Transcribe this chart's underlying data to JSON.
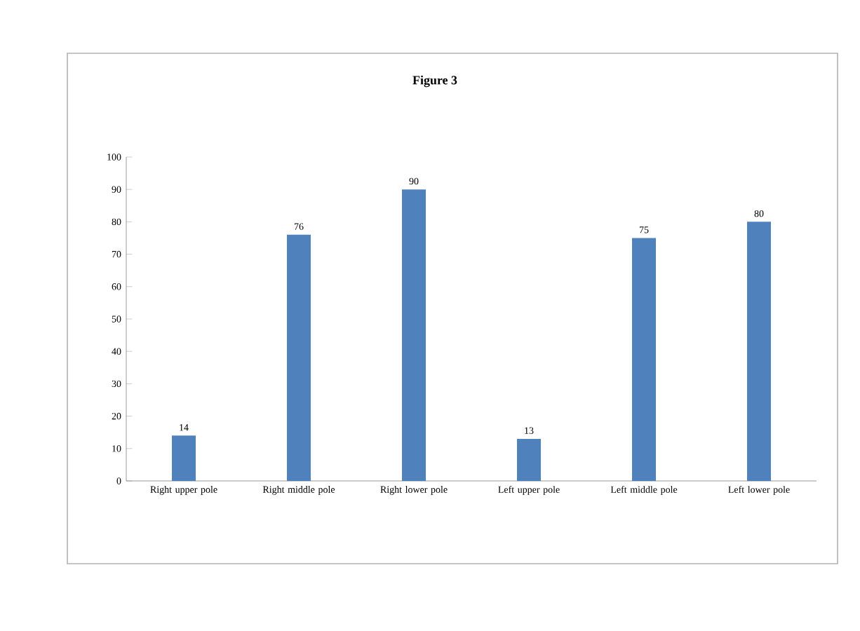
{
  "chart_data": {
    "type": "bar",
    "title": "Figure 3",
    "categories": [
      "Right upper pole",
      "Right middle pole",
      "Right lower pole",
      "Left upper pole",
      "Left middle pole",
      "Left lower pole"
    ],
    "values": [
      14,
      76,
      90,
      13,
      75,
      80
    ],
    "color": "#4f81bd",
    "ylim": [
      0,
      100
    ],
    "yticks": [
      0,
      10,
      20,
      30,
      40,
      50,
      60,
      70,
      80,
      90,
      100
    ],
    "data_labels": true
  }
}
